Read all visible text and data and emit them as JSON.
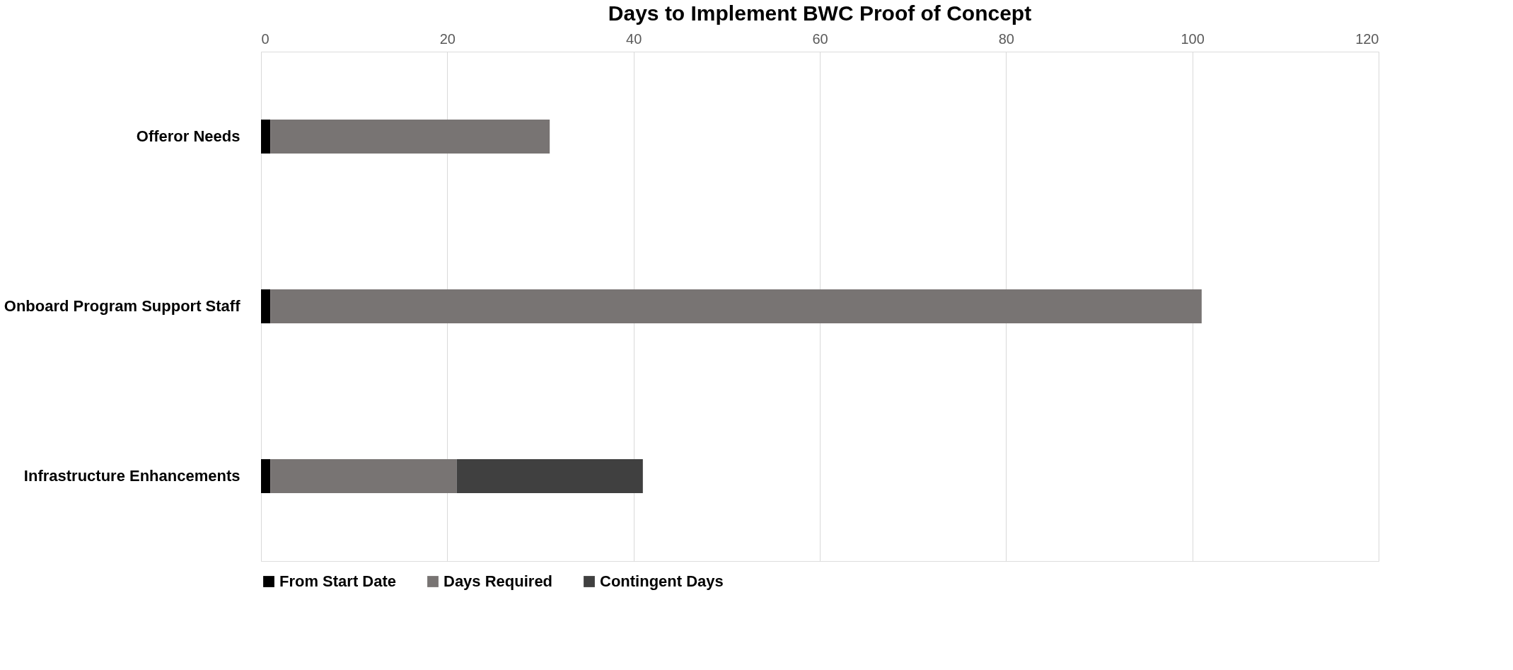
{
  "chart_data": {
    "type": "bar",
    "title": "Days to Implement BWC Proof of Concept",
    "orientation": "horizontal",
    "stacked": true,
    "categories": [
      "Offeror Needs",
      "Onboard Program Support Staff",
      "Infrastructure Enhancements"
    ],
    "series": [
      {
        "name": "From Start Date",
        "color": "#000000",
        "values": [
          1,
          1,
          1
        ]
      },
      {
        "name": "Days Required",
        "color": "#787473",
        "values": [
          30,
          100,
          20
        ]
      },
      {
        "name": "Contingent Days",
        "color": "#404040",
        "values": [
          0,
          0,
          20
        ]
      }
    ],
    "xlim": [
      0,
      120
    ],
    "xticks": [
      0,
      20,
      40,
      60,
      80,
      100,
      120
    ],
    "grid": "x",
    "legend": "bottom"
  }
}
